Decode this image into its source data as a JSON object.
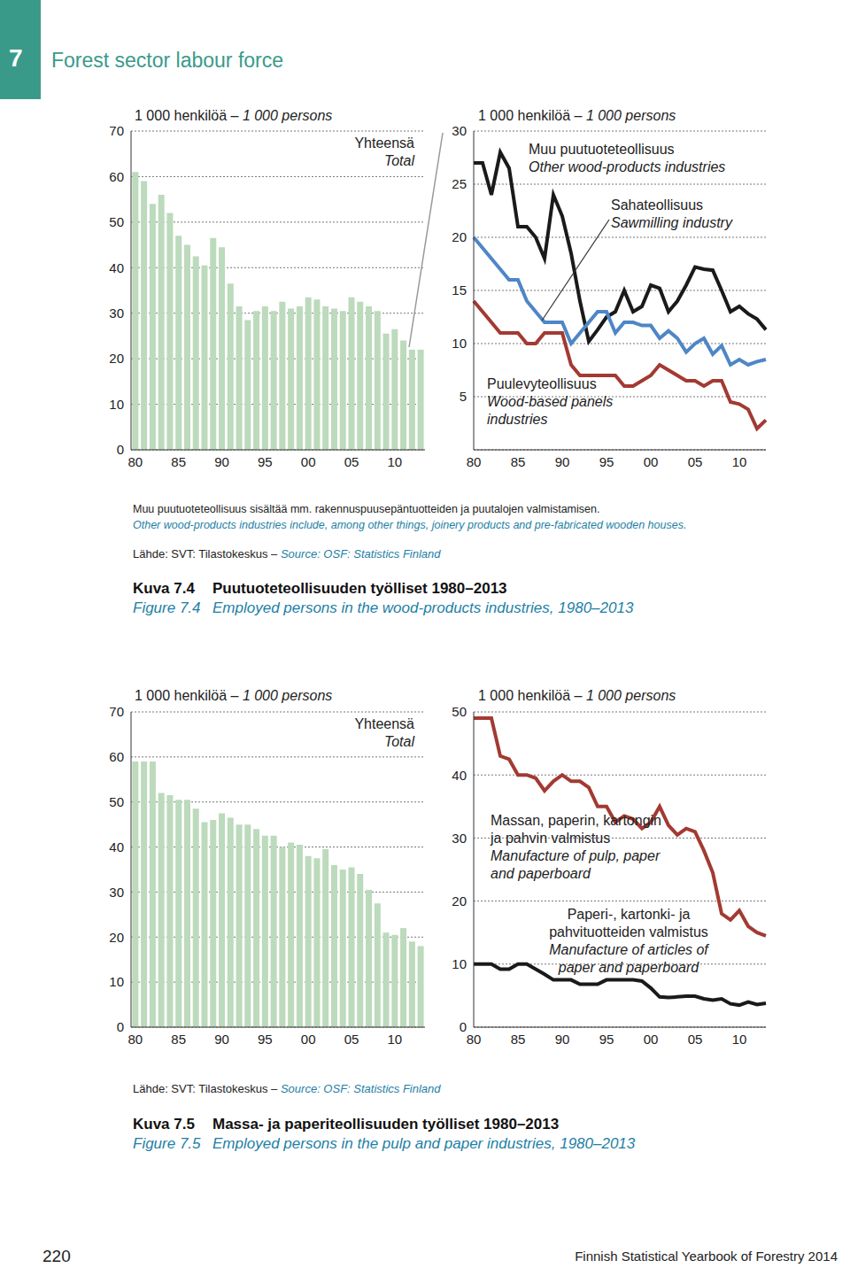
{
  "page": {
    "chapter": "7",
    "title": "Forest sector labour force",
    "page_number": "220",
    "footer": "Finnish Statistical Yearbook of Forestry 2014"
  },
  "figures": [
    {
      "note": [
        "Muu puutuoteteollisuus sisältää mm. rakennuspuusepäntuotteiden ja puutalojen valmistamisen.",
        "Other wood-products industries include, among other things, joinery products and pre-fabricated wooden houses."
      ],
      "source": [
        "Lähde: SVT: Tilastokeskus – ",
        "Source: OSF: Statistics Finland"
      ],
      "caption": {
        "number_fi": "Kuva 7.4",
        "title_fi": "Puutuoteteollisuuden työlliset 1980–2013",
        "number_en": "Figure 7.4",
        "title_en": "Employed persons in the wood-products industries, 1980–2013"
      }
    },
    {
      "note": [],
      "source": [
        "Lähde: SVT: Tilastokeskus – ",
        "Source: OSF: Statistics Finland"
      ],
      "caption": {
        "number_fi": "Kuva 7.5",
        "title_fi": "Massa- ja paperiteollisuuden työlliset 1980–2013",
        "number_en": "Figure 7.5",
        "title_en": "Employed persons in the pulp and paper industries, 1980–2013"
      }
    }
  ],
  "chart_data": [
    {
      "type": "bar",
      "ylabel": [
        "1 000 henkilöä – ",
        "1 000 persons"
      ],
      "categories": [
        "80",
        null,
        null,
        null,
        null,
        "85",
        null,
        null,
        null,
        null,
        "90",
        null,
        null,
        null,
        null,
        "95",
        null,
        null,
        null,
        null,
        "00",
        null,
        null,
        null,
        null,
        "05",
        null,
        null,
        null,
        null,
        "10",
        null,
        null,
        null
      ],
      "ylim": [
        0,
        70
      ],
      "yticks": [
        0,
        10,
        20,
        30,
        40,
        50,
        60,
        70
      ],
      "grid": true,
      "series": [
        {
          "name": [
            "Yhteensä",
            "Total"
          ],
          "color": "#bcdabc",
          "values": [
            61,
            59,
            54,
            56,
            52,
            47,
            45,
            42.5,
            40.5,
            46.5,
            44.5,
            36.5,
            31.5,
            28.5,
            30.5,
            31.5,
            30.5,
            32.5,
            31,
            31.5,
            33.5,
            33,
            31.5,
            31,
            30.5,
            33.5,
            32.5,
            31.5,
            30.5,
            25.5,
            26.5,
            24,
            22,
            22
          ]
        }
      ]
    },
    {
      "type": "line",
      "ylabel": [
        "1 000 henkilöä – ",
        "1 000 persons"
      ],
      "categories": [
        "80",
        null,
        null,
        null,
        null,
        "85",
        null,
        null,
        null,
        null,
        "90",
        null,
        null,
        null,
        null,
        "95",
        null,
        null,
        null,
        null,
        "00",
        null,
        null,
        null,
        null,
        "05",
        null,
        null,
        null,
        null,
        "10",
        null,
        null,
        null
      ],
      "ylim": [
        0,
        30
      ],
      "yticks": [
        5,
        10,
        15,
        20,
        25,
        30
      ],
      "grid": true,
      "series": [
        {
          "name": [
            "Muu puutuoteteollisuus",
            "Other wood-products industries"
          ],
          "color": "#1a1a1a",
          "values": [
            27,
            27,
            24,
            28,
            26.5,
            21,
            21,
            20,
            18,
            24,
            22,
            18.5,
            14,
            10.2,
            11.3,
            12.5,
            13,
            15,
            13,
            13.5,
            15.5,
            15.2,
            13,
            14,
            15.5,
            17.2,
            17,
            16.9,
            15,
            13,
            13.5,
            12.8,
            12.3,
            11.3
          ]
        },
        {
          "name": [
            "Sahateollisuus",
            "Sawmilling industry"
          ],
          "color": "#4f86c6",
          "values": [
            20,
            19,
            18,
            17,
            16,
            16,
            14,
            13,
            12,
            12,
            12,
            10,
            11,
            12,
            13,
            13,
            11,
            12,
            12,
            11.7,
            11.7,
            10.5,
            11.2,
            10.5,
            9.2,
            10,
            10.5,
            9,
            9.8,
            8,
            8.5,
            8,
            8.3,
            8.5
          ]
        },
        {
          "name": [
            "Puulevyteollisuus",
            "Wood-based panels industries"
          ],
          "color": "#a33a32",
          "values": [
            14,
            13,
            12,
            11,
            11,
            11,
            10,
            10,
            11,
            11,
            11,
            8,
            7,
            7,
            7,
            7,
            7,
            6,
            6,
            6.5,
            7,
            8,
            7.5,
            7,
            6.5,
            6.5,
            6,
            6.5,
            6.5,
            4.5,
            4.3,
            3.8,
            2,
            2.8
          ]
        }
      ]
    },
    {
      "type": "bar",
      "ylabel": [
        "1 000 henkilöä – ",
        "1 000 persons"
      ],
      "categories": [
        "80",
        null,
        null,
        null,
        null,
        "85",
        null,
        null,
        null,
        null,
        "90",
        null,
        null,
        null,
        null,
        "95",
        null,
        null,
        null,
        null,
        "00",
        null,
        null,
        null,
        null,
        "05",
        null,
        null,
        null,
        null,
        "10",
        null,
        null,
        null
      ],
      "ylim": [
        0,
        70
      ],
      "yticks": [
        0,
        10,
        20,
        30,
        40,
        50,
        60,
        70
      ],
      "grid": true,
      "series": [
        {
          "name": [
            "Yhteensä",
            "Total"
          ],
          "color": "#bcdabc",
          "values": [
            59,
            59,
            59,
            52,
            51.5,
            50.5,
            50.5,
            48.5,
            45.5,
            46,
            47.5,
            46.5,
            45,
            45,
            44,
            42.5,
            42.5,
            40,
            41,
            40.5,
            38,
            37.5,
            39.5,
            36,
            35,
            35.5,
            34,
            30.5,
            27.5,
            21,
            20.5,
            22,
            19,
            18
          ]
        }
      ]
    },
    {
      "type": "line",
      "ylabel": [
        "1 000 henkilöä – ",
        "1 000 persons"
      ],
      "categories": [
        "80",
        null,
        null,
        null,
        null,
        "85",
        null,
        null,
        null,
        null,
        "90",
        null,
        null,
        null,
        null,
        "95",
        null,
        null,
        null,
        null,
        "00",
        null,
        null,
        null,
        null,
        "05",
        null,
        null,
        null,
        null,
        "10",
        null,
        null,
        null
      ],
      "ylim": [
        0,
        50
      ],
      "yticks": [
        0,
        10,
        20,
        30,
        40,
        50
      ],
      "grid": true,
      "series": [
        {
          "name": [
            "Massan, paperin, kartongin ja pahvin valmistus",
            "Manufacture of pulp, paper and paperboard"
          ],
          "color": "#a33a32",
          "values": [
            49,
            49,
            49,
            43,
            42.5,
            40,
            40,
            39.5,
            37.5,
            39,
            40,
            39,
            39,
            38,
            35,
            35,
            32.5,
            33.5,
            33,
            31.5,
            32.5,
            35,
            32,
            30.5,
            31.5,
            31,
            28,
            24.5,
            18,
            17,
            18.5,
            16,
            15,
            14.5
          ]
        },
        {
          "name": [
            "Paperi-, kartonki- ja pahvituotteiden valmistus",
            "Manufacture of articles of paper and paperboard"
          ],
          "color": "#1a1a1a",
          "values": [
            10,
            10,
            10,
            9.2,
            9.2,
            10,
            10,
            9.2,
            8.4,
            7.5,
            7.5,
            7.5,
            6.8,
            6.8,
            6.8,
            7.5,
            7.5,
            7.5,
            7.5,
            7.3,
            6.2,
            4.8,
            4.7,
            4.8,
            4.9,
            4.9,
            4.5,
            4.3,
            4.5,
            3.7,
            3.5,
            4,
            3.6,
            3.8
          ]
        }
      ]
    }
  ]
}
